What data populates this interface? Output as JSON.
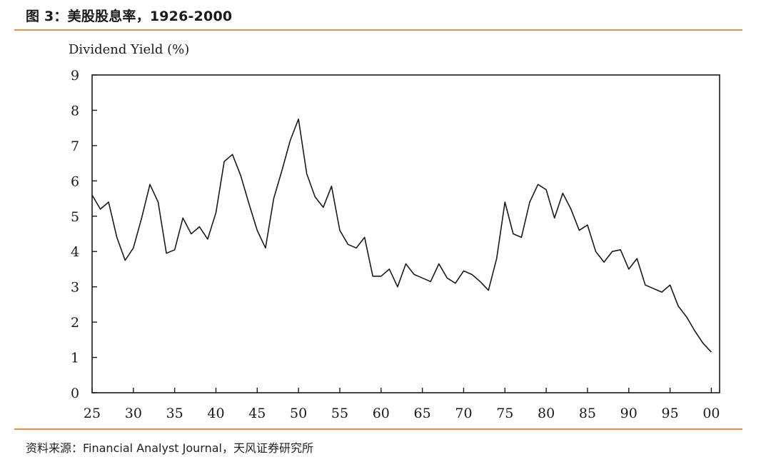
{
  "figure": {
    "title": "图 3：美股股息率，1926-2000",
    "source": "资料来源：Financial Analyst Journal，天风证券研究所"
  },
  "colors": {
    "accent_rule": "#e8913a",
    "line": "#1a1a1a",
    "axis": "#1a1a1a"
  },
  "chart_data": {
    "type": "line",
    "ylabel": "Dividend Yield (%)",
    "xlabel": "",
    "xlim": [
      1925,
      2001
    ],
    "ylim": [
      0,
      9
    ],
    "grid": false,
    "x_ticks": [
      1925,
      1930,
      1935,
      1940,
      1945,
      1950,
      1955,
      1960,
      1965,
      1970,
      1975,
      1980,
      1985,
      1990,
      1995,
      2000
    ],
    "x_tick_labels": [
      "25",
      "30",
      "35",
      "40",
      "45",
      "50",
      "55",
      "60",
      "65",
      "70",
      "75",
      "80",
      "85",
      "90",
      "95",
      "00"
    ],
    "y_ticks": [
      0,
      1,
      2,
      3,
      4,
      5,
      6,
      7,
      8,
      9
    ],
    "y_tick_labels": [
      "0",
      "1",
      "2",
      "3",
      "4",
      "5",
      "6",
      "7",
      "8",
      "9"
    ],
    "series": [
      {
        "x": [
          1925,
          1926,
          1927,
          1928,
          1929,
          1930,
          1931,
          1932,
          1933,
          1934,
          1935,
          1936,
          1937,
          1938,
          1939,
          1940,
          1941,
          1942,
          1943,
          1944,
          1945,
          1946,
          1947,
          1948,
          1949,
          1950,
          1951,
          1952,
          1953,
          1954,
          1955,
          1956,
          1957,
          1958,
          1959,
          1960,
          1961,
          1962,
          1963,
          1964,
          1965,
          1966,
          1967,
          1968,
          1969,
          1970,
          1971,
          1972,
          1973,
          1974,
          1975,
          1976,
          1977,
          1978,
          1979,
          1980,
          1981,
          1982,
          1983,
          1984,
          1985,
          1986,
          1987,
          1988,
          1989,
          1990,
          1991,
          1992,
          1993,
          1994,
          1995,
          1996,
          1997,
          1998,
          1999,
          2000
        ],
        "values": [
          5.6,
          5.2,
          5.4,
          4.4,
          3.75,
          4.1,
          4.95,
          5.9,
          5.4,
          3.95,
          4.05,
          4.95,
          4.5,
          4.7,
          4.35,
          5.1,
          6.55,
          6.75,
          6.15,
          5.35,
          4.6,
          4.1,
          5.5,
          6.3,
          7.15,
          7.75,
          6.2,
          5.55,
          5.25,
          5.85,
          4.6,
          4.2,
          4.1,
          4.4,
          3.3,
          3.3,
          3.5,
          3.0,
          3.65,
          3.35,
          3.25,
          3.15,
          3.65,
          3.25,
          3.1,
          3.45,
          3.35,
          3.15,
          2.9,
          3.8,
          5.4,
          4.5,
          4.4,
          5.4,
          5.9,
          5.75,
          4.95,
          5.65,
          5.2,
          4.6,
          4.75,
          4.0,
          3.7,
          4.0,
          4.05,
          3.5,
          3.8,
          3.05,
          2.95,
          2.85,
          3.05,
          2.45,
          2.15,
          1.75,
          1.4,
          1.15
        ]
      }
    ]
  }
}
